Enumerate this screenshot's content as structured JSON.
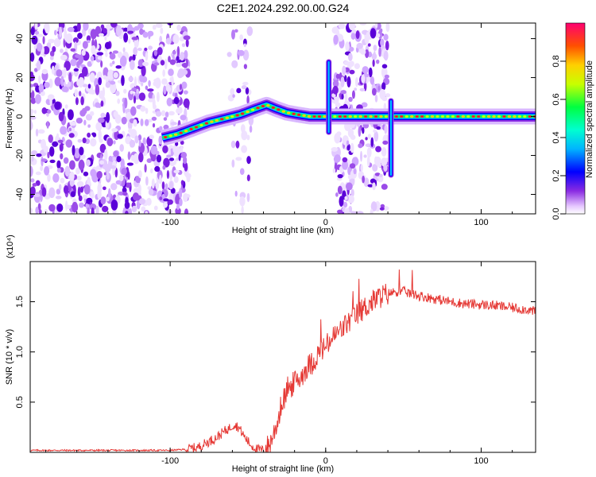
{
  "title": "C2E1.2024.292.00.00.G24",
  "colors": {
    "line": "#e53935",
    "frame": "#000000",
    "bg": "#ffffff"
  },
  "chart_data": [
    {
      "type": "heatmap",
      "xlabel": "Height of straight line (km)",
      "ylabel": "Frequency (Hz)",
      "xlim": [
        -190,
        135
      ],
      "ylim": [
        -50,
        48
      ],
      "x_ticks": [
        -100,
        0,
        100
      ],
      "y_ticks": [
        -40,
        -20,
        0,
        20,
        40
      ],
      "colorbar": {
        "label": "Normalized spectral amplitude",
        "range": [
          0,
          1
        ],
        "ticks": [
          0,
          0.2,
          0.4,
          0.6,
          0.8
        ]
      },
      "ridge": {
        "x": [
          -105,
          -95,
          -85,
          -75,
          -65,
          -55,
          -45,
          -38,
          -32,
          -25,
          -18,
          -10,
          -5,
          0,
          5,
          10,
          20,
          30,
          35,
          40,
          45,
          60,
          80,
          100,
          120,
          135
        ],
        "y": [
          -11,
          -9,
          -6,
          -3,
          -1,
          1,
          4,
          6,
          4,
          2,
          1,
          0,
          0,
          0,
          0,
          0,
          0,
          0,
          0,
          0,
          0,
          0,
          0,
          0,
          0,
          0
        ]
      }
    },
    {
      "type": "line",
      "xlabel": "Height of straight line (km)",
      "ylabel": "SNR (10 * v/v)",
      "y_multiplier": "(x10⁴)",
      "xlim": [
        -190,
        135
      ],
      "ylim": [
        0,
        1.9
      ],
      "x_ticks": [
        -100,
        0,
        100
      ],
      "y_ticks": [
        0.5,
        1.0,
        1.5
      ],
      "series": [
        {
          "x": [
            -190,
            -160,
            -130,
            -100,
            -90,
            -82,
            -76,
            -70,
            -66,
            -62,
            -59,
            -56,
            -52,
            -48,
            -44,
            -40,
            -36,
            -32,
            -28,
            -24,
            -20,
            -16,
            -12,
            -8,
            -4,
            0,
            5,
            10,
            15,
            20,
            25,
            30,
            35,
            40,
            45,
            50,
            55,
            60,
            70,
            80,
            90,
            100,
            110,
            120,
            130,
            135
          ],
          "y": [
            0.02,
            0.02,
            0.02,
            0.02,
            0.03,
            0.05,
            0.1,
            0.15,
            0.2,
            0.24,
            0.28,
            0.25,
            0.15,
            0.07,
            0.03,
            0.02,
            0.08,
            0.25,
            0.5,
            0.62,
            0.7,
            0.75,
            0.85,
            0.9,
            1.0,
            1.05,
            1.15,
            1.22,
            1.3,
            1.37,
            1.44,
            1.5,
            1.55,
            1.58,
            1.6,
            1.6,
            1.58,
            1.56,
            1.53,
            1.5,
            1.48,
            1.47,
            1.46,
            1.44,
            1.42,
            1.4
          ]
        }
      ]
    }
  ]
}
